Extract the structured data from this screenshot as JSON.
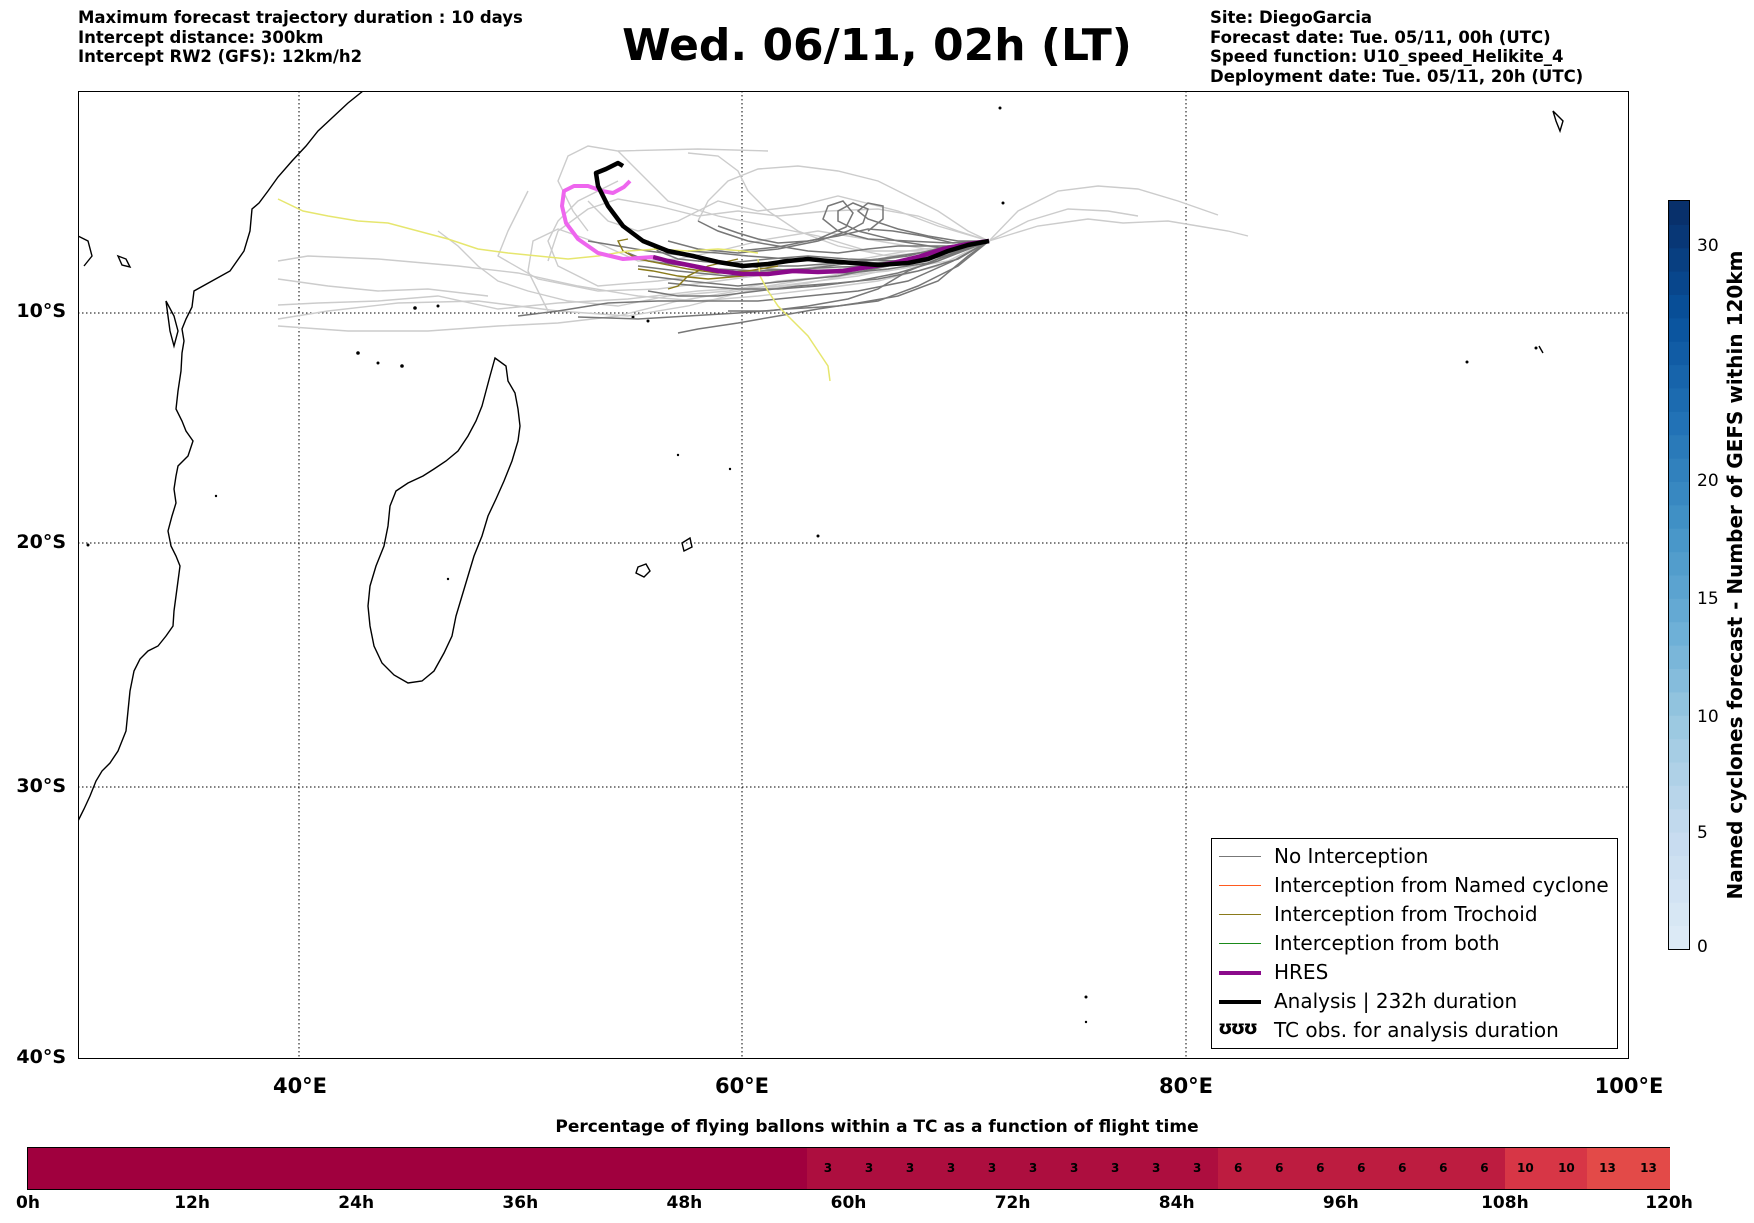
{
  "header": {
    "left": {
      "duration": "Maximum forecast trajectory duration : 10 days",
      "distance": "Intercept distance: 300km",
      "rw2": "Intercept RW2 (GFS):  12km/h2"
    },
    "title": "Wed. 06/11, 02h (LT)",
    "right": {
      "site": "Site: DiegoGarcia",
      "forecast": "Forecast date: Tue. 05/11, 00h (UTC)",
      "speed": "Speed function: U10_speed_Helikite_4",
      "deployment": "Deployment date: Tue. 05/11, 20h (UTC)"
    }
  },
  "map": {
    "lon_range": [
      30,
      100
    ],
    "lat_range": [
      -40,
      1
    ],
    "lat_labels": [
      "10°S",
      "20°S",
      "30°S",
      "40°S"
    ],
    "lon_labels": [
      "40°E",
      "60°E",
      "80°E",
      "100°E"
    ],
    "grid": "dotted",
    "colors": {
      "coast": "#000000",
      "no_interception": "#777777",
      "no_interception_light": "#cccccc",
      "named_cyclone": "#ff5a1f",
      "trochoid": "#8a7a1a",
      "both": "#1a8a1a",
      "hres": "#8b0a8b",
      "analysis": "#000000",
      "hres_pink": "#ee66ee",
      "yellow": "#e6e66e"
    }
  },
  "legend": {
    "items": [
      {
        "label": "No Interception",
        "color": "#777777",
        "width": 1.5
      },
      {
        "label": "Interception from Named cyclone",
        "color": "#ff5a1f",
        "width": 1.5
      },
      {
        "label": "Interception from Trochoid",
        "color": "#8a7a1a",
        "width": 1.5
      },
      {
        "label": "Interception from both",
        "color": "#1a8a1a",
        "width": 1.5
      },
      {
        "label": "HRES",
        "color": "#8b0a8b",
        "width": 4
      },
      {
        "label": "Analysis | 232h duration",
        "color": "#000000",
        "width": 4
      },
      {
        "label": "TC obs. for analysis duration",
        "color": "#000000",
        "width": 0,
        "icon": "cyclone-symbols"
      }
    ],
    "icon_glyphs": "ʊʊʊ"
  },
  "colorbar": {
    "label": "Named cyclones forecast - Number of GEFS within 120km",
    "ticks": [
      "0",
      "5",
      "10",
      "15",
      "20",
      "30"
    ],
    "range": [
      0,
      32
    ],
    "palette": "Blues"
  },
  "percentage_bar": {
    "title": "Percentage of flying ballons within a TC as a function of flight time",
    "tick_labels": [
      "0h",
      "12h",
      "24h",
      "36h",
      "48h",
      "60h",
      "72h",
      "84h",
      "96h",
      "108h",
      "120h"
    ],
    "max_hours": 120,
    "segments_hours_step": 3,
    "values": [
      0,
      0,
      0,
      0,
      0,
      0,
      0,
      0,
      0,
      0,
      0,
      0,
      0,
      0,
      0,
      0,
      0,
      0,
      0,
      3,
      3,
      3,
      3,
      3,
      3,
      3,
      3,
      3,
      3,
      6,
      6,
      6,
      6,
      6,
      6,
      6,
      10,
      10,
      13,
      13
    ],
    "colors": {
      "0": "#a0003e",
      "3": "#ad0e3f",
      "6": "#bd1c40",
      "10": "#d73646",
      "13": "#e34a48"
    }
  }
}
